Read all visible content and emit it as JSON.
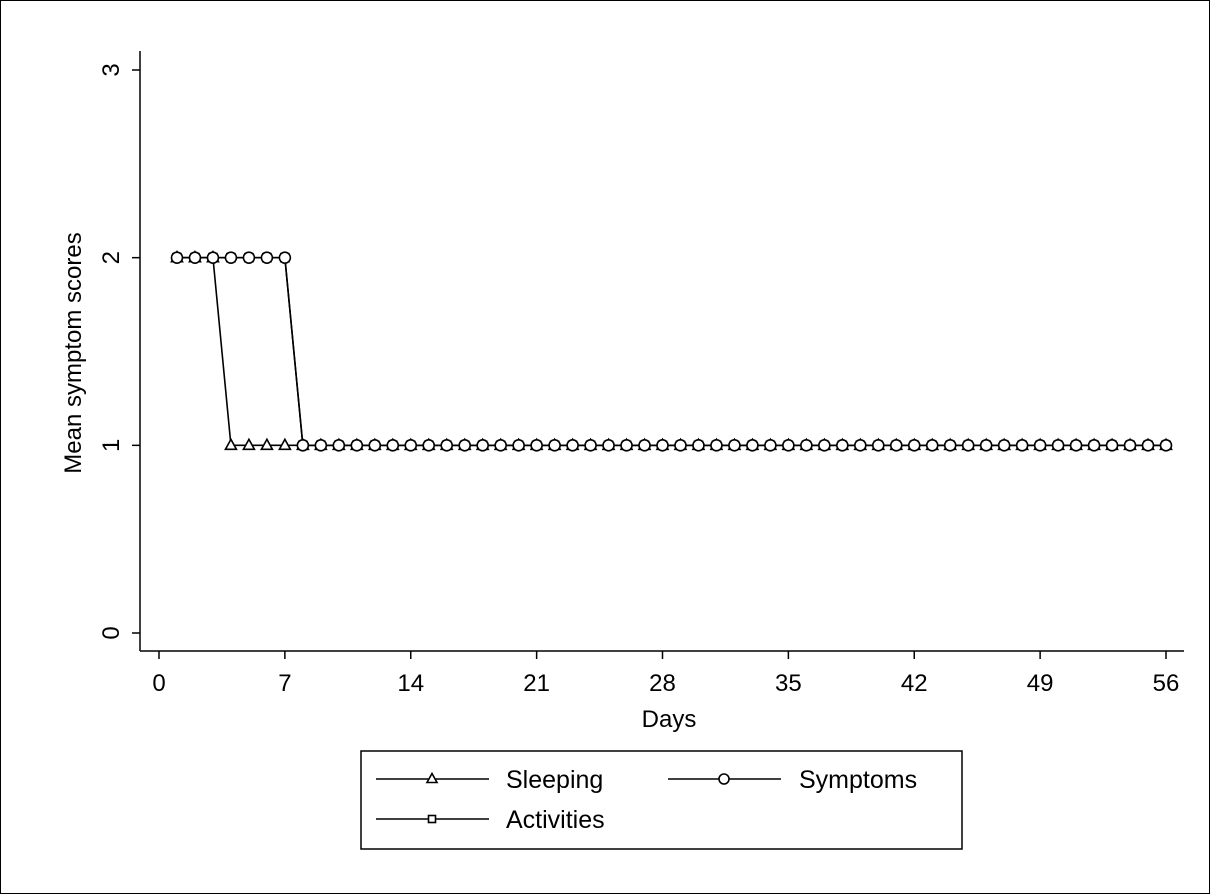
{
  "chart_data": {
    "type": "line",
    "xlabel": "Days",
    "ylabel": "Mean symptom scores",
    "xlim": [
      0,
      56
    ],
    "ylim": [
      0,
      3
    ],
    "xticks": [
      0,
      7,
      14,
      21,
      28,
      35,
      42,
      49,
      56
    ],
    "yticks": [
      0,
      1,
      2,
      3
    ],
    "grid": false,
    "legend_position": "bottom",
    "series": [
      {
        "name": "Sleeping",
        "marker": "triangle",
        "x": [
          1,
          2,
          3,
          4,
          5,
          6,
          7,
          8,
          9,
          10,
          11,
          12,
          13,
          14,
          15,
          16,
          17,
          18,
          19,
          20,
          21,
          22,
          23,
          24,
          25,
          26,
          27,
          28,
          29,
          30,
          31,
          32,
          33,
          34,
          35,
          36,
          37,
          38,
          39,
          40,
          41,
          42,
          43,
          44,
          45,
          46,
          47,
          48,
          49,
          50,
          51,
          52,
          53,
          54,
          55,
          56
        ],
        "values": [
          2,
          2,
          2,
          1,
          1,
          1,
          1,
          1,
          1,
          1,
          1,
          1,
          1,
          1,
          1,
          1,
          1,
          1,
          1,
          1,
          1,
          1,
          1,
          1,
          1,
          1,
          1,
          1,
          1,
          1,
          1,
          1,
          1,
          1,
          1,
          1,
          1,
          1,
          1,
          1,
          1,
          1,
          1,
          1,
          1,
          1,
          1,
          1,
          1,
          1,
          1,
          1,
          1,
          1,
          1,
          1
        ]
      },
      {
        "name": "Symptoms",
        "marker": "circle",
        "x": [
          1,
          2,
          3,
          4,
          5,
          6,
          7,
          8,
          9,
          10,
          11,
          12,
          13,
          14,
          15,
          16,
          17,
          18,
          19,
          20,
          21,
          22,
          23,
          24,
          25,
          26,
          27,
          28,
          29,
          30,
          31,
          32,
          33,
          34,
          35,
          36,
          37,
          38,
          39,
          40,
          41,
          42,
          43,
          44,
          45,
          46,
          47,
          48,
          49,
          50,
          51,
          52,
          53,
          54,
          55,
          56
        ],
        "values": [
          2,
          2,
          2,
          2,
          2,
          2,
          2,
          1,
          1,
          1,
          1,
          1,
          1,
          1,
          1,
          1,
          1,
          1,
          1,
          1,
          1,
          1,
          1,
          1,
          1,
          1,
          1,
          1,
          1,
          1,
          1,
          1,
          1,
          1,
          1,
          1,
          1,
          1,
          1,
          1,
          1,
          1,
          1,
          1,
          1,
          1,
          1,
          1,
          1,
          1,
          1,
          1,
          1,
          1,
          1,
          1
        ]
      },
      {
        "name": "Activities",
        "marker": "square",
        "x": [
          1,
          2,
          3,
          4,
          5,
          6,
          7,
          8,
          9,
          10,
          11,
          12,
          13,
          14,
          15,
          16,
          17,
          18,
          19,
          20,
          21,
          22,
          23,
          24,
          25,
          26,
          27,
          28,
          29,
          30,
          31,
          32,
          33,
          34,
          35,
          36,
          37,
          38,
          39,
          40,
          41,
          42,
          43,
          44,
          45,
          46,
          47,
          48,
          49,
          50,
          51,
          52,
          53,
          54,
          55,
          56
        ],
        "values": [
          2,
          2,
          2,
          2,
          2,
          2,
          2,
          1,
          1,
          1,
          1,
          1,
          1,
          1,
          1,
          1,
          1,
          1,
          1,
          1,
          1,
          1,
          1,
          1,
          1,
          1,
          1,
          1,
          1,
          1,
          1,
          1,
          1,
          1,
          1,
          1,
          1,
          1,
          1,
          1,
          1,
          1,
          1,
          1,
          1,
          1,
          1,
          1,
          1,
          1,
          1,
          1,
          1,
          1,
          1,
          1
        ]
      }
    ]
  }
}
